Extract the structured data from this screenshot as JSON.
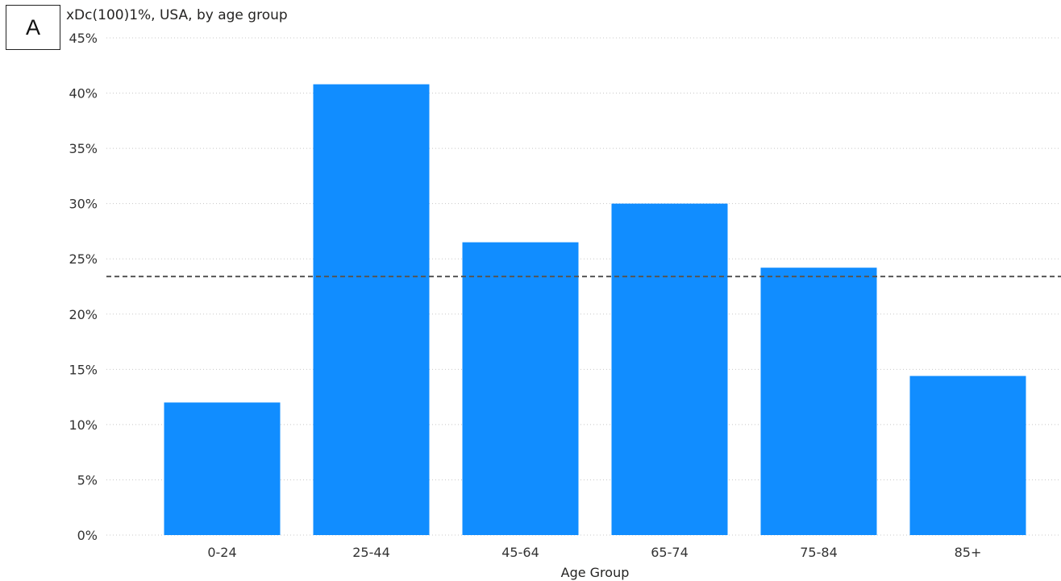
{
  "panel_label": "A",
  "chart_data": {
    "type": "bar",
    "title": "xDc(100)1%, USA, by age group",
    "xlabel": "Age Group",
    "ylabel": "",
    "categories": [
      "0-24",
      "25-44",
      "45-64",
      "65-74",
      "75-84",
      "85+"
    ],
    "values": [
      12.0,
      40.8,
      26.5,
      30.0,
      24.2,
      14.4
    ],
    "ylim": [
      0,
      45
    ],
    "yticks": [
      "0%",
      "5%",
      "10%",
      "15%",
      "20%",
      "25%",
      "30%",
      "35%",
      "40%",
      "45%"
    ],
    "reference_line": 23.4,
    "grid": true,
    "bar_color": "#118DFF",
    "reference_line_color": "#555555"
  }
}
